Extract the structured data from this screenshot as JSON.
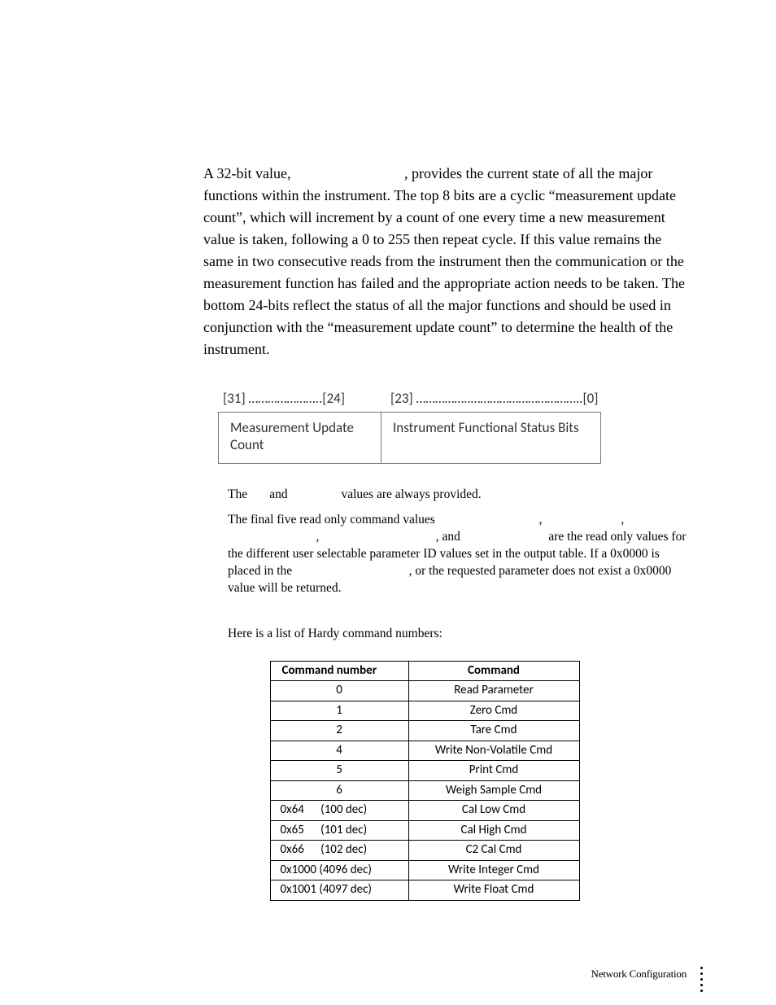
{
  "paragraph1": "A 32-bit value,                               , provides the current state of all the major functions within the instrument. The top 8 bits are a cyclic “measurement update count”, which will increment by a count of one every time a new measurement value is taken, following a 0 to 255 then repeat cycle. If this value remains the same in two consecutive reads from the instrument then the communication or the measurement function has failed and the appropriate action needs to be taken. The bottom 24-bits reflect the status of all the major functions and should be used in conjunction with the “measurement update count” to determine the health of the instrument.",
  "bits": {
    "label_left": "[31] …………………..[24]",
    "label_right": "[23] ……………..……………………………..[0]",
    "cell_left": "Measurement Update Count",
    "cell_right": "Instrument Functional  Status Bits"
  },
  "paragraph2": "The       and                 values are always provided.",
  "paragraph3": "The final five read only command values                                 ,                         ,                             ,                                     , and                            are the read only values for the different user selectable parameter ID values set in the output table. If a 0x0000 is placed in the                                     , or the requested parameter does not exist a 0x0000 value will be returned.",
  "cmd_intro": "Here is a list of Hardy command numbers:",
  "cmd_table": {
    "header_num": "Command number",
    "header_cmd": "Command",
    "rows": [
      {
        "num": "0",
        "split": false,
        "desc": "Read Parameter"
      },
      {
        "num": "1",
        "split": false,
        "desc": "Zero Cmd"
      },
      {
        "num": "2",
        "split": false,
        "desc": "Tare Cmd"
      },
      {
        "num": "4",
        "split": false,
        "desc": "Write Non-Volatile Cmd"
      },
      {
        "num": "5",
        "split": false,
        "desc": "Print Cmd"
      },
      {
        "num": "6",
        "split": false,
        "desc": "Weigh Sample Cmd"
      },
      {
        "num": "0x64      (100 dec)",
        "split": true,
        "desc": "Cal Low Cmd"
      },
      {
        "num": "0x65      (101 dec)",
        "split": true,
        "desc": "Cal High Cmd"
      },
      {
        "num": "0x66      (102 dec)",
        "split": true,
        "desc": "C2 Cal Cmd"
      },
      {
        "num": "0x1000 (4096 dec)",
        "split": true,
        "desc": "Write Integer Cmd"
      },
      {
        "num": "0x1001 (4097 dec)",
        "split": true,
        "desc": "Write Float Cmd"
      }
    ]
  },
  "footer": "Network Configuration"
}
